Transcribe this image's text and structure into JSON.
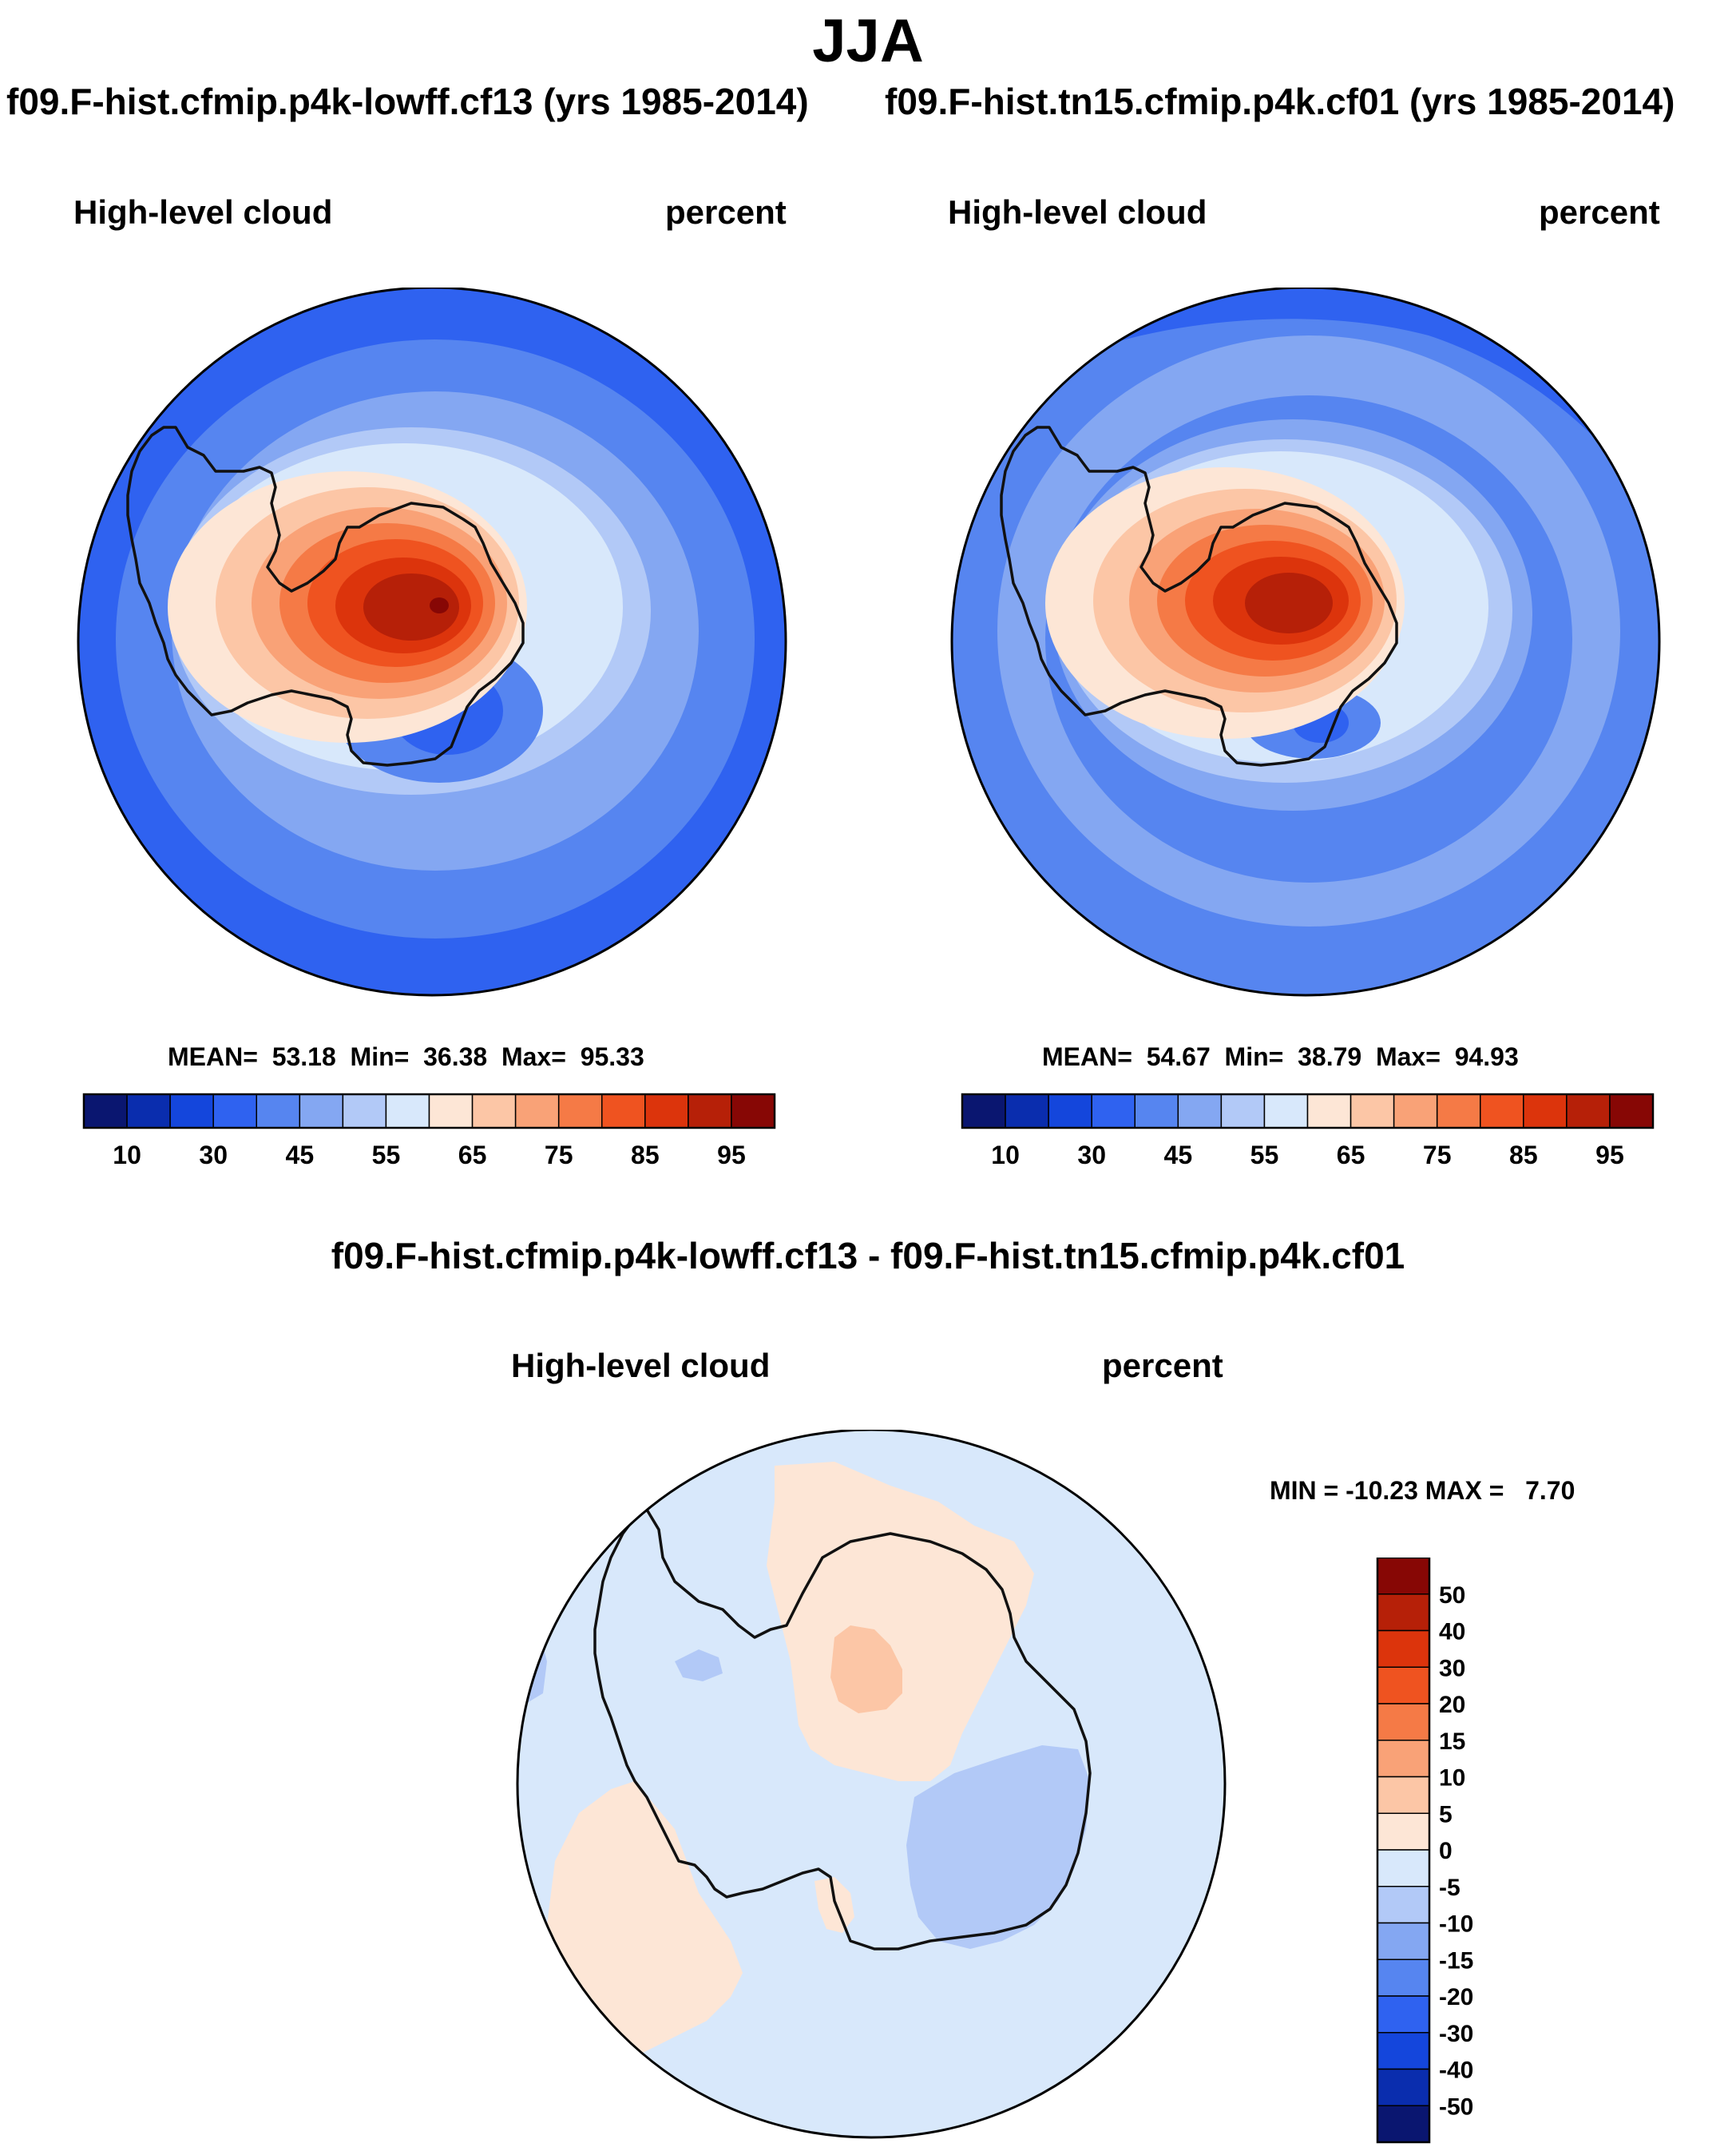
{
  "figure": {
    "title": "JJA",
    "diff_title": "f09.F-hist.cfmip.p4k-lowff.cf13 - f09.F-hist.tn15.cfmip.p4k.cf01"
  },
  "panels": [
    {
      "case_title": "f09.F-hist.cfmip.p4k-lowff.cf13 (yrs 1985-2014)",
      "variable": "High-level cloud",
      "units": "percent",
      "mean_label": "MEAN=",
      "mean": "53.18",
      "min_label": "Min=",
      "min": "36.38",
      "max_label": "Max=",
      "max": "95.33"
    },
    {
      "case_title": "f09.F-hist.tn15.cfmip.p4k.cf01 (yrs 1985-2014)",
      "variable": "High-level cloud",
      "units": "percent",
      "mean_label": "MEAN=",
      "mean": "54.67",
      "min_label": "Min=",
      "min": "38.79",
      "max_label": "Max=",
      "max": "94.93"
    },
    {
      "variable": "High-level cloud",
      "units": "percent",
      "minmax_text": "MIN = -10.23 MAX =   7.70"
    }
  ],
  "chart_data": [
    {
      "type": "heatmap",
      "projection": "south polar stereographic",
      "title": "f09.F-hist.cfmip.p4k-lowff.cf13 (yrs 1985-2014)",
      "variable": "High-level cloud",
      "units": "percent",
      "mean": 53.18,
      "min": 36.38,
      "max": 95.33,
      "colorbar_ticks": [
        "10",
        "30",
        "45",
        "55",
        "65",
        "75",
        "85",
        "95"
      ],
      "colorbar_colors": [
        "#0a1670",
        "#0a2dae",
        "#1446dc",
        "#2f62f0",
        "#5685f0",
        "#84a7f2",
        "#b2c9f7",
        "#d8e8fb",
        "#fde6d6",
        "#fcc6a6",
        "#f9a277",
        "#f57a46",
        "#ef5320",
        "#dc340c",
        "#b62008",
        "#870705"
      ]
    },
    {
      "type": "heatmap",
      "projection": "south polar stereographic",
      "title": "f09.F-hist.tn15.cfmip.p4k.cf01 (yrs 1985-2014)",
      "variable": "High-level cloud",
      "units": "percent",
      "mean": 54.67,
      "min": 38.79,
      "max": 94.93,
      "colorbar_ticks": [
        "10",
        "30",
        "45",
        "55",
        "65",
        "75",
        "85",
        "95"
      ],
      "colorbar_colors": [
        "#0a1670",
        "#0a2dae",
        "#1446dc",
        "#2f62f0",
        "#5685f0",
        "#84a7f2",
        "#b2c9f7",
        "#d8e8fb",
        "#fde6d6",
        "#fcc6a6",
        "#f9a277",
        "#f57a46",
        "#ef5320",
        "#dc340c",
        "#b62008",
        "#870705"
      ]
    },
    {
      "type": "heatmap",
      "projection": "south polar stereographic",
      "title": "f09.F-hist.cfmip.p4k-lowff.cf13 - f09.F-hist.tn15.cfmip.p4k.cf01",
      "variable": "High-level cloud",
      "units": "percent",
      "min": -10.23,
      "max": 7.7,
      "colorbar_ticks": [
        "50",
        "40",
        "30",
        "20",
        "15",
        "10",
        "5",
        "0",
        "-5",
        "-10",
        "-15",
        "-20",
        "-30",
        "-40",
        "-50"
      ],
      "colorbar_colors": [
        "#870705",
        "#b62008",
        "#dc340c",
        "#ef5320",
        "#f57a46",
        "#f9a277",
        "#fcc6a6",
        "#fde6d6",
        "#d8e8fb",
        "#b2c9f7",
        "#84a7f2",
        "#5685f0",
        "#2f62f0",
        "#1446dc",
        "#0a2dae",
        "#0a1670"
      ]
    }
  ]
}
